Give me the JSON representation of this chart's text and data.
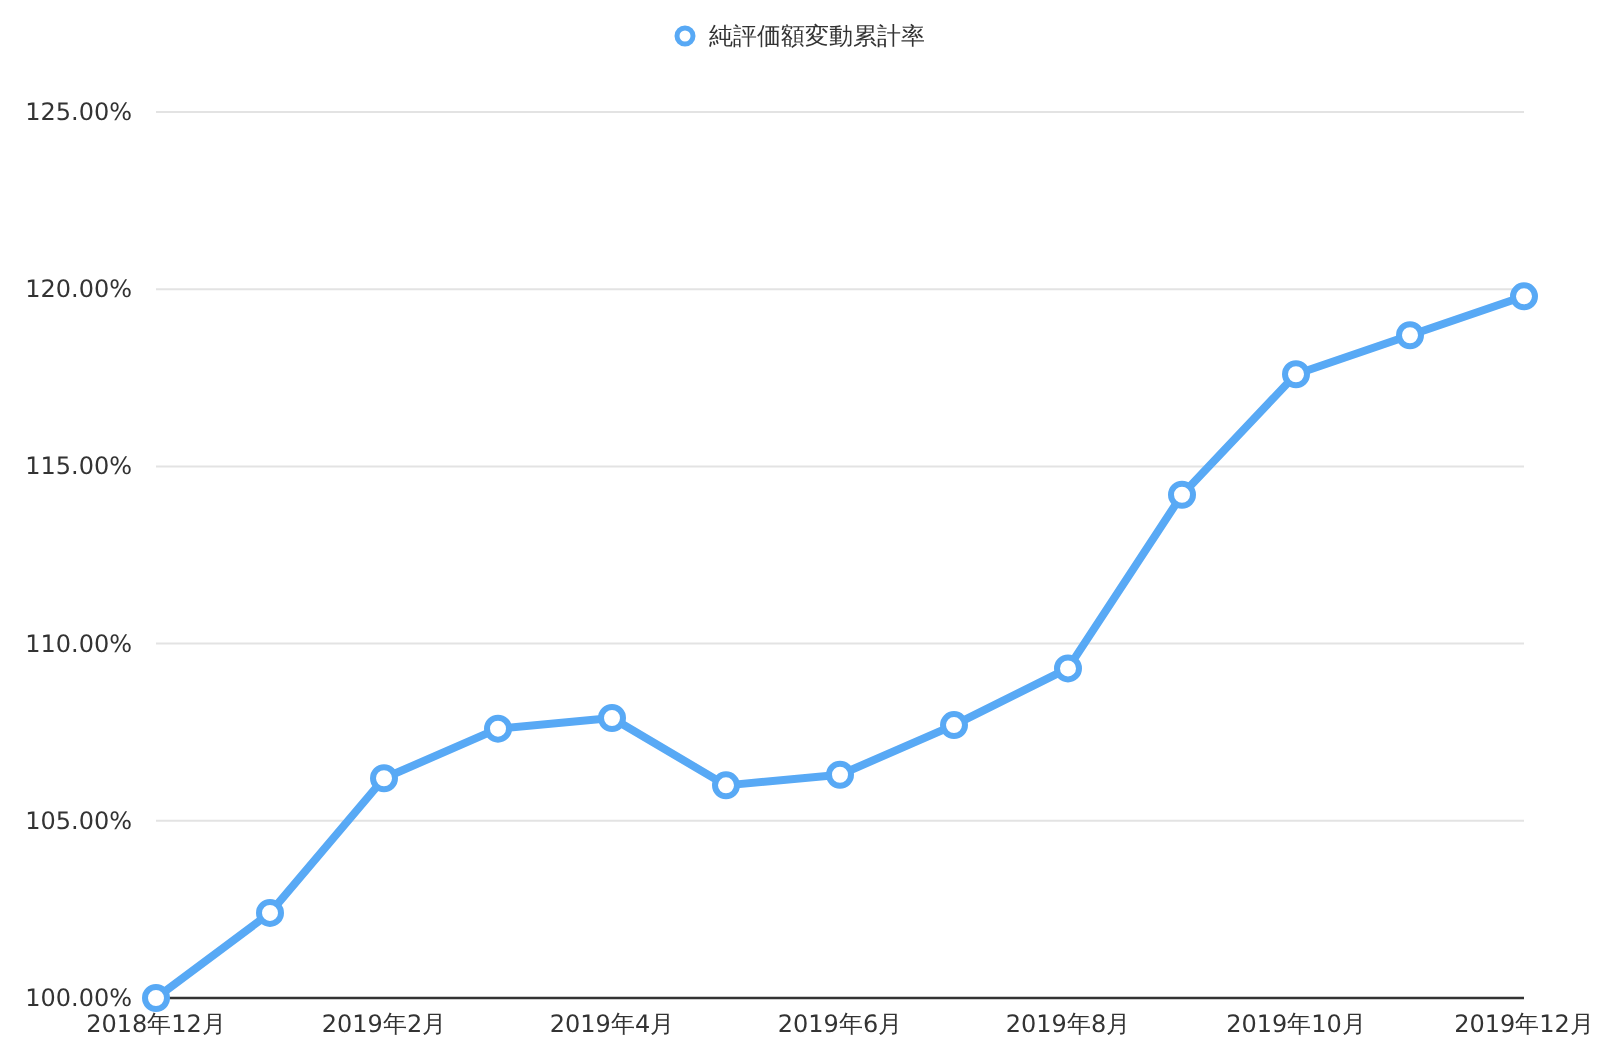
{
  "chart_data": {
    "type": "line",
    "categories": [
      "2018年12月",
      null,
      "2019年2月",
      null,
      "2019年4月",
      null,
      "2019年6月",
      null,
      "2019年8月",
      null,
      "2019年10月",
      null,
      "2019年12月"
    ],
    "series": [
      {
        "name": "純評価額変動累計率",
        "color": "#58a9f5",
        "values": [
          100.0,
          102.4,
          106.2,
          107.6,
          107.9,
          106.0,
          106.3,
          107.7,
          109.3,
          114.2,
          117.6,
          118.7,
          119.8
        ]
      }
    ],
    "ylim": [
      100,
      125
    ],
    "yticks": [
      {
        "value": 100,
        "label": "100.00%"
      },
      {
        "value": 105,
        "label": "105.00%"
      },
      {
        "value": 110,
        "label": "110.00%"
      },
      {
        "value": 115,
        "label": "115.00%"
      },
      {
        "value": 120,
        "label": "120.00%"
      },
      {
        "value": 125,
        "label": "125.00%"
      }
    ],
    "grid": "y",
    "legend": "top",
    "marker": "circle",
    "line_style": "solid"
  }
}
